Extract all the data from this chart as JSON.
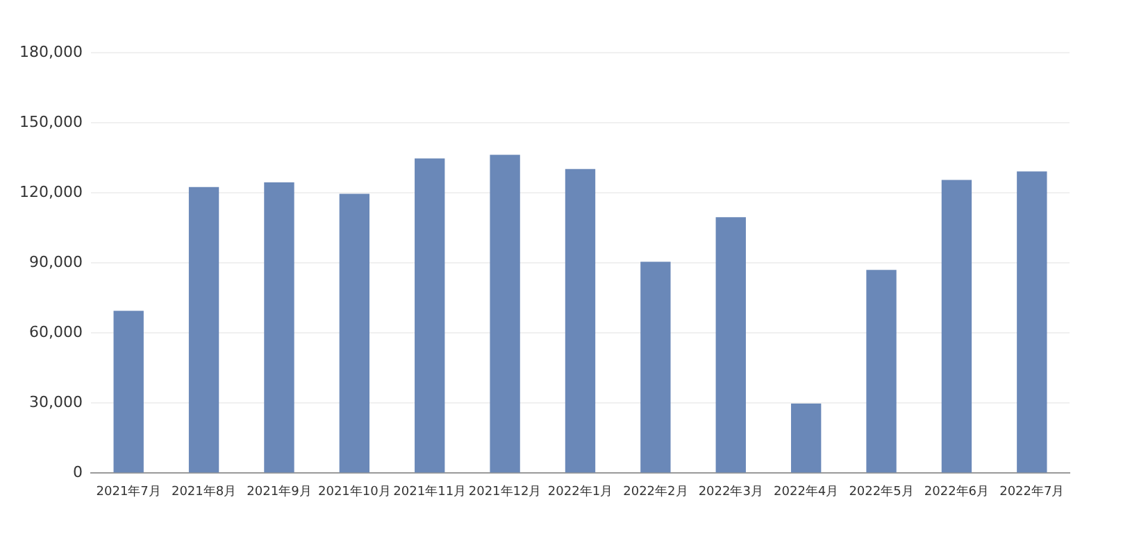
{
  "chart_data": {
    "type": "bar",
    "categories": [
      "2021年7月",
      "2021年8月",
      "2021年9月",
      "2021年10月",
      "2021年11月",
      "2021年12月",
      "2022年1月",
      "2022年2月",
      "2022年3月",
      "2022年4月",
      "2022年5月",
      "2022年6月",
      "2022年7月"
    ],
    "values": [
      69500,
      122500,
      124500,
      119600,
      134700,
      136300,
      130200,
      90500,
      109600,
      29800,
      87000,
      125500,
      129200
    ],
    "color": "#6a88b8",
    "ylim": [
      0,
      180000
    ],
    "yticks": [
      {
        "value": 0,
        "label": "0"
      },
      {
        "value": 30000,
        "label": "30,000"
      },
      {
        "value": 60000,
        "label": "60,000"
      },
      {
        "value": 90000,
        "label": "90,000"
      },
      {
        "value": 120000,
        "label": "120,000"
      },
      {
        "value": 150000,
        "label": "150,000"
      },
      {
        "value": 180000,
        "label": "180,000"
      }
    ],
    "grid": "y",
    "legend": false
  }
}
